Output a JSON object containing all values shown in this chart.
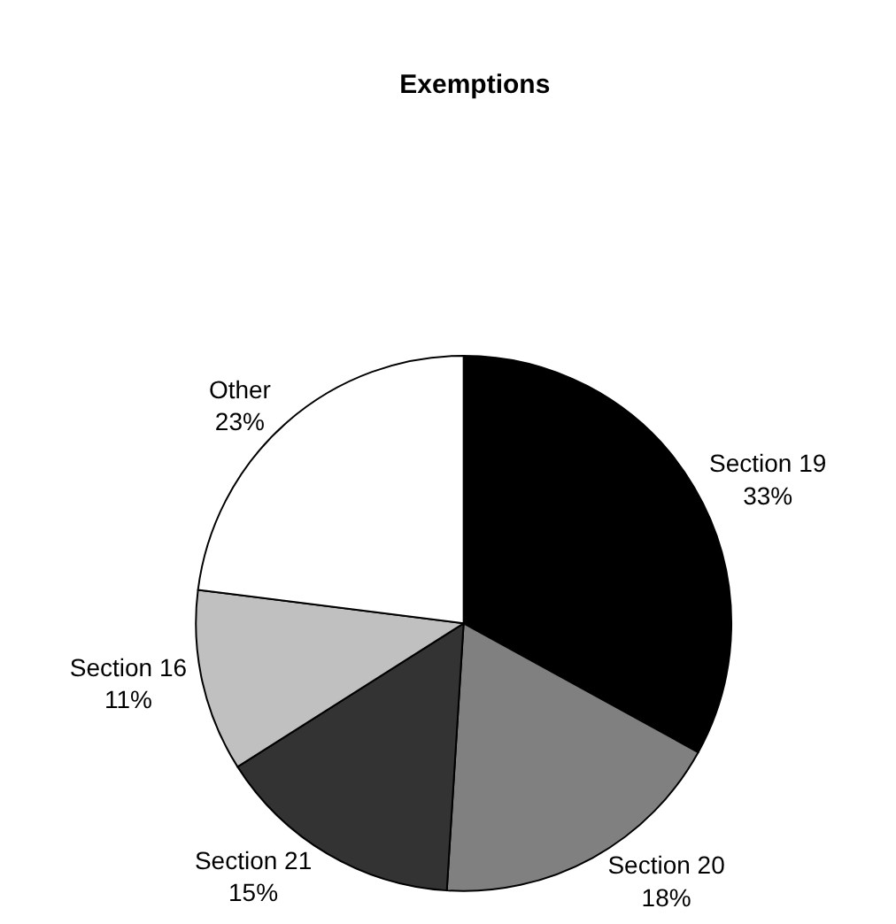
{
  "chart_data": {
    "type": "pie",
    "title": "Exemptions",
    "categories": [
      "Section 19",
      "Section 20",
      "Section 21",
      "Section 16",
      "Other"
    ],
    "values": [
      33,
      18,
      15,
      11,
      23
    ],
    "value_labels": [
      "33%",
      "18%",
      "15%",
      "11%",
      "23%"
    ],
    "colors": [
      "#000000",
      "#808080",
      "#333333",
      "#c0c0c0",
      "#ffffff"
    ],
    "legend": false
  }
}
